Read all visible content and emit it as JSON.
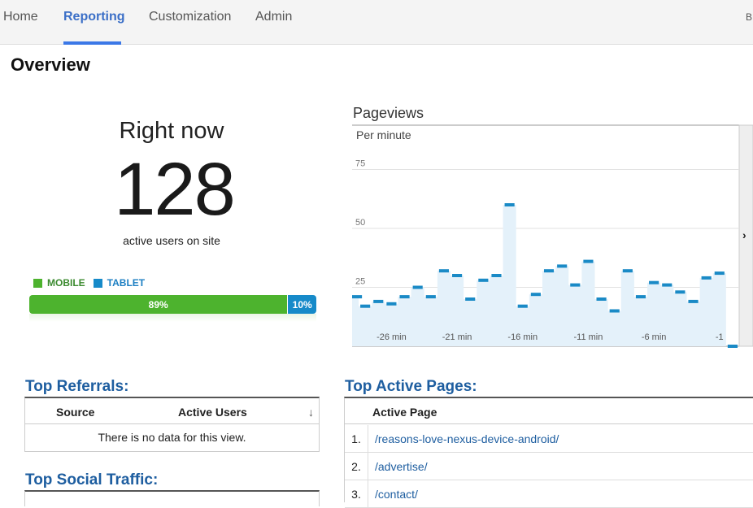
{
  "nav": {
    "tabs": [
      {
        "label": "Home"
      },
      {
        "label": "Reporting"
      },
      {
        "label": "Customization"
      },
      {
        "label": "Admin"
      }
    ],
    "edge_text": "B"
  },
  "page_title": "Overview",
  "right_now": {
    "title": "Right now",
    "count": "128",
    "subtitle": "active users on site"
  },
  "devices": {
    "legend": [
      {
        "label": "MOBILE",
        "color": "#4db32e"
      },
      {
        "label": "TABLET",
        "color": "#168ac9"
      }
    ],
    "mobile_pct": 89,
    "tablet_pct": 10,
    "mobile_label": "89%",
    "tablet_label": "10%"
  },
  "pageviews": {
    "title": "Pageviews",
    "chart_data": {
      "type": "bar",
      "subtitle": "Per minute",
      "ylim": [
        0,
        90
      ],
      "y_ticks": [
        25,
        50,
        75
      ],
      "x_tick_labels": [
        "-26 min",
        "-21 min",
        "-16 min",
        "-11 min",
        "-6 min",
        "-1"
      ],
      "x_tick_positions": [
        -26,
        -21,
        -16,
        -11,
        -6,
        -1
      ],
      "x": [
        -29,
        -28,
        -27,
        -26,
        -25,
        -24,
        -23,
        -22,
        -21,
        -20,
        -19,
        -18,
        -17,
        -16,
        -15,
        -14,
        -13,
        -12,
        -11,
        -10,
        -9,
        -8,
        -7,
        -6,
        -5,
        -4,
        -3,
        -2,
        -1,
        0
      ],
      "values": [
        21,
        17,
        19,
        18,
        21,
        25,
        21,
        32,
        30,
        20,
        28,
        30,
        60,
        17,
        22,
        32,
        34,
        26,
        36,
        20,
        15,
        32,
        21,
        27,
        26,
        23,
        19,
        29,
        31,
        0
      ],
      "grid": true,
      "color": "#1a8ac6",
      "fill": "#e4f1fa"
    }
  },
  "referrals": {
    "title": "Top Referrals:",
    "columns": [
      "Source",
      "Active Users"
    ],
    "empty_text": "There is no data for this view."
  },
  "social": {
    "title": "Top Social Traffic:"
  },
  "active_pages": {
    "title": "Top Active Pages:",
    "column": "Active Page",
    "rows": [
      {
        "num": "1.",
        "page": "/reasons-love-nexus-device-android/"
      },
      {
        "num": "2.",
        "page": "/advertise/"
      },
      {
        "num": "3.",
        "page": "/contact/"
      }
    ]
  }
}
